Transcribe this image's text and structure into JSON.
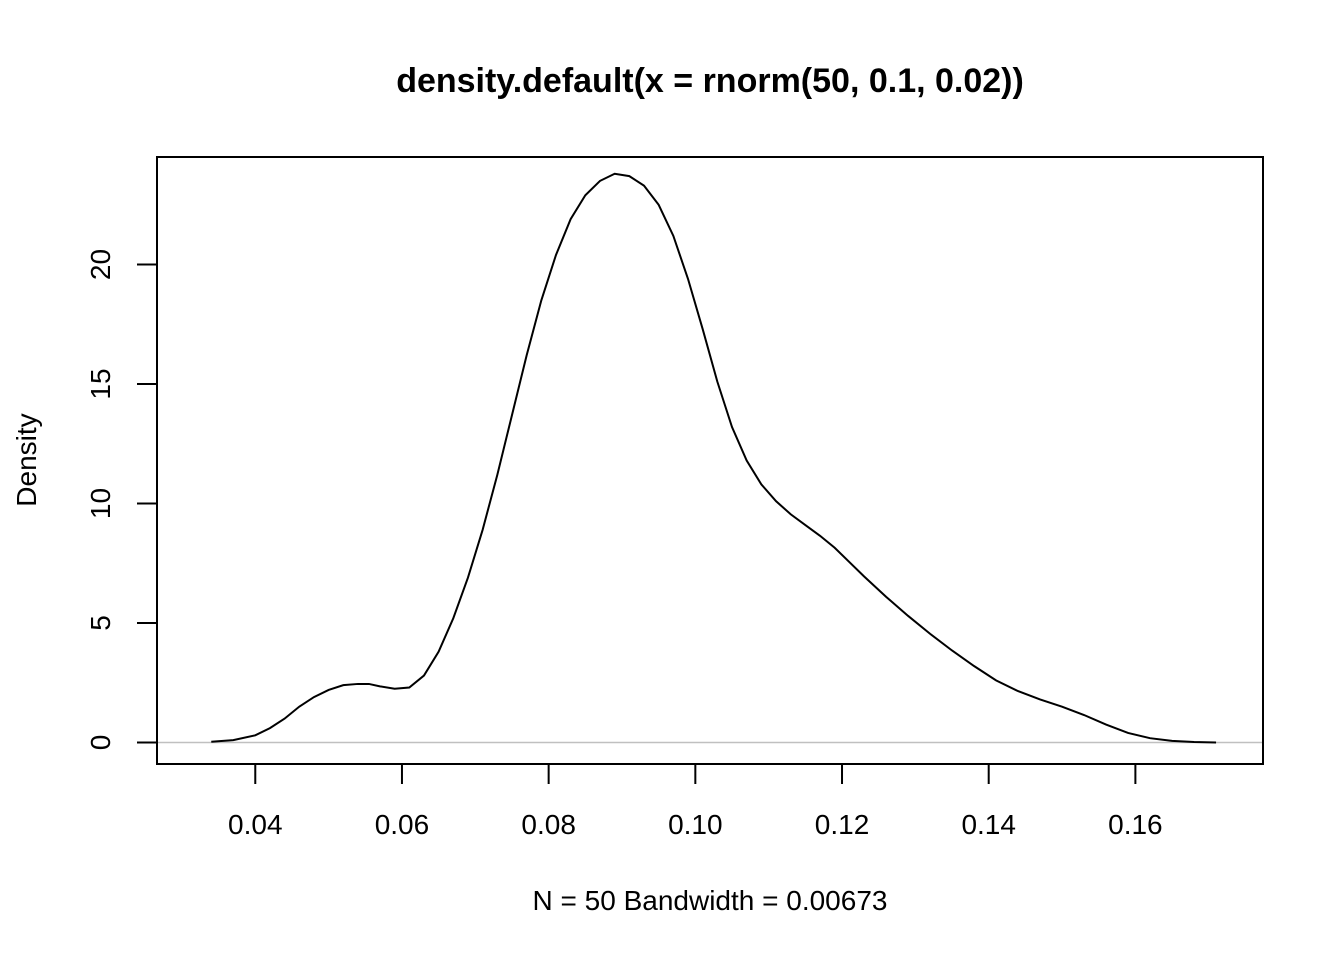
{
  "chart_data": {
    "type": "line",
    "title": "density.default(x = rnorm(50, 0.1, 0.02))",
    "xlabel": "N = 50   Bandwidth = 0.00673",
    "ylabel": "Density",
    "xlim": [
      0.0266,
      0.1774
    ],
    "ylim": [
      -0.9,
      24.5
    ],
    "x_ticks": [
      0.04,
      0.06,
      0.08,
      0.1,
      0.12,
      0.14,
      0.16
    ],
    "x_tick_labels": [
      "0.04",
      "0.06",
      "0.08",
      "0.10",
      "0.12",
      "0.14",
      "0.16"
    ],
    "y_ticks": [
      0,
      5,
      10,
      15,
      20
    ],
    "y_tick_labels": [
      "0",
      "5",
      "10",
      "15",
      "20"
    ],
    "grid": false,
    "baseline": 0,
    "baseline_color": "#c0c0c0",
    "line_color": "#000000",
    "series": [
      {
        "x": [
          0.034,
          0.037,
          0.04,
          0.042,
          0.044,
          0.046,
          0.048,
          0.05,
          0.052,
          0.054,
          0.0555,
          0.057,
          0.059,
          0.061,
          0.063,
          0.065,
          0.067,
          0.069,
          0.071,
          0.073,
          0.075,
          0.077,
          0.079,
          0.081,
          0.083,
          0.085,
          0.087,
          0.089,
          0.091,
          0.093,
          0.095,
          0.097,
          0.099,
          0.101,
          0.103,
          0.105,
          0.107,
          0.109,
          0.111,
          0.113,
          0.115,
          0.117,
          0.119,
          0.121,
          0.123,
          0.126,
          0.129,
          0.132,
          0.135,
          0.138,
          0.141,
          0.144,
          0.147,
          0.15,
          0.153,
          0.156,
          0.159,
          0.162,
          0.165,
          0.168,
          0.171
        ],
        "y": [
          0.03,
          0.1,
          0.3,
          0.6,
          1.0,
          1.5,
          1.9,
          2.2,
          2.4,
          2.45,
          2.45,
          2.35,
          2.25,
          2.3,
          2.8,
          3.8,
          5.2,
          6.9,
          8.9,
          11.2,
          13.7,
          16.2,
          18.5,
          20.4,
          21.9,
          22.9,
          23.5,
          23.8,
          23.7,
          23.3,
          22.5,
          21.2,
          19.4,
          17.3,
          15.1,
          13.2,
          11.8,
          10.8,
          10.1,
          9.55,
          9.1,
          8.65,
          8.15,
          7.55,
          6.95,
          6.1,
          5.3,
          4.55,
          3.85,
          3.2,
          2.6,
          2.15,
          1.8,
          1.5,
          1.15,
          0.75,
          0.4,
          0.18,
          0.07,
          0.02,
          0.0
        ]
      }
    ]
  }
}
